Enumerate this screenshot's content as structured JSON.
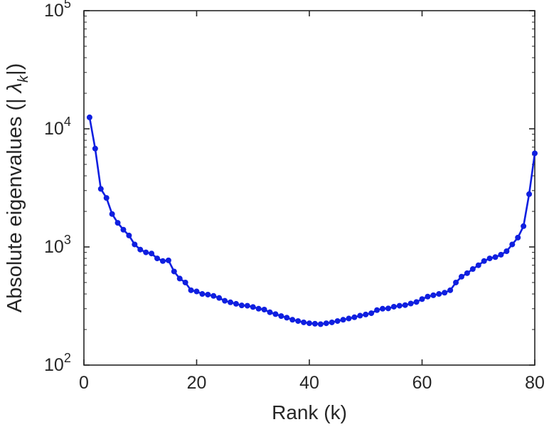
{
  "figure": {
    "background": "#ffffff",
    "axis_text_color": "#262626"
  },
  "chart_data": {
    "type": "line",
    "title": "",
    "xlabel": "Rank (k)",
    "ylabel": "Absolute eigenvalues (|λ_k|)",
    "ylabel_parts": {
      "prefix": "Absolute eigenvalues (|",
      "gap": "  ",
      "symbol": "λ",
      "subscript": "k",
      "suffix": "|)"
    },
    "y_scale": "log",
    "grid": false,
    "legend": null,
    "xlim": [
      0,
      80
    ],
    "ylim": [
      100,
      100000
    ],
    "xticks": [
      0,
      20,
      40,
      60,
      80
    ],
    "ytick_base": "10",
    "ytick_exponents": [
      2,
      3,
      4,
      5
    ],
    "line_color": "#0f1fe0",
    "marker": "circle",
    "axis_color": "#262626",
    "x": [
      1,
      2,
      3,
      4,
      5,
      6,
      7,
      8,
      9,
      10,
      11,
      12,
      13,
      14,
      15,
      16,
      17,
      18,
      19,
      20,
      21,
      22,
      23,
      24,
      25,
      26,
      27,
      28,
      29,
      30,
      31,
      32,
      33,
      34,
      35,
      36,
      37,
      38,
      39,
      40,
      41,
      42,
      43,
      44,
      45,
      46,
      47,
      48,
      49,
      50,
      51,
      52,
      53,
      54,
      55,
      56,
      57,
      58,
      59,
      60,
      61,
      62,
      63,
      64,
      65,
      66,
      67,
      68,
      69,
      70,
      71,
      72,
      73,
      74,
      75,
      76,
      77,
      78,
      79,
      80
    ],
    "values": [
      12500,
      6800,
      3100,
      2600,
      1900,
      1600,
      1400,
      1250,
      1050,
      950,
      900,
      880,
      800,
      760,
      770,
      620,
      540,
      500,
      430,
      420,
      400,
      395,
      385,
      370,
      350,
      340,
      330,
      320,
      318,
      310,
      300,
      295,
      280,
      270,
      260,
      252,
      242,
      236,
      230,
      226,
      224,
      222,
      226,
      230,
      236,
      242,
      248,
      254,
      262,
      268,
      275,
      292,
      300,
      302,
      312,
      318,
      322,
      332,
      342,
      362,
      380,
      390,
      400,
      410,
      430,
      500,
      560,
      600,
      650,
      700,
      760,
      800,
      820,
      860,
      920,
      1050,
      1200,
      1500,
      2800,
      6200
    ]
  }
}
